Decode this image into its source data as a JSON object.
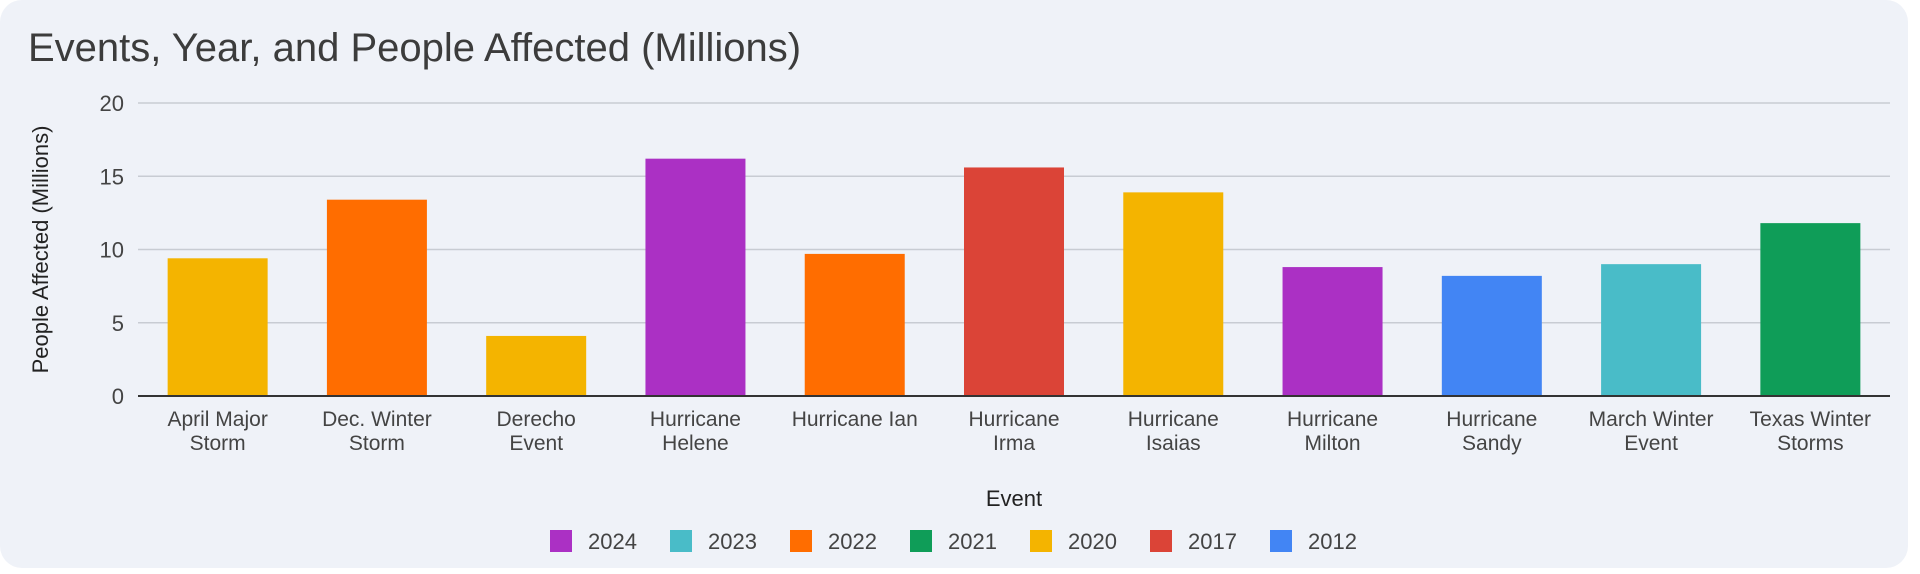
{
  "chart_data": {
    "type": "bar",
    "title": "Events, Year, and People Affected (Millions)",
    "xlabel": "Event",
    "ylabel": "People Affected (Millions)",
    "ylim": [
      0,
      20
    ],
    "yticks": [
      0,
      5,
      10,
      15,
      20
    ],
    "grid": true,
    "legend_position": "bottom",
    "categories": [
      {
        "lines": [
          "April Major",
          "Storm"
        ],
        "value": 9.4,
        "year": "2020"
      },
      {
        "lines": [
          "Dec. Winter",
          "Storm"
        ],
        "value": 13.4,
        "year": "2022"
      },
      {
        "lines": [
          "Derecho",
          "Event"
        ],
        "value": 4.1,
        "year": "2020"
      },
      {
        "lines": [
          "Hurricane",
          "Helene"
        ],
        "value": 16.2,
        "year": "2024"
      },
      {
        "lines": [
          "Hurricane Ian"
        ],
        "value": 9.7,
        "year": "2022"
      },
      {
        "lines": [
          "Hurricane",
          "Irma"
        ],
        "value": 15.6,
        "year": "2017"
      },
      {
        "lines": [
          "Hurricane",
          "Isaias"
        ],
        "value": 13.9,
        "year": "2020"
      },
      {
        "lines": [
          "Hurricane",
          "Milton"
        ],
        "value": 8.8,
        "year": "2024"
      },
      {
        "lines": [
          "Hurricane",
          "Sandy"
        ],
        "value": 8.2,
        "year": "2012"
      },
      {
        "lines": [
          "March Winter",
          "Event"
        ],
        "value": 9.0,
        "year": "2023"
      },
      {
        "lines": [
          "Texas Winter",
          "Storms"
        ],
        "value": 11.8,
        "year": "2021"
      }
    ],
    "legend": [
      {
        "label": "2024",
        "color": "#ab30c4"
      },
      {
        "label": "2023",
        "color": "#49bcc8"
      },
      {
        "label": "2022",
        "color": "#ff6d00"
      },
      {
        "label": "2021",
        "color": "#0f9d58"
      },
      {
        "label": "2020",
        "color": "#f4b400"
      },
      {
        "label": "2017",
        "color": "#db4437"
      },
      {
        "label": "2012",
        "color": "#4285f4"
      }
    ]
  }
}
